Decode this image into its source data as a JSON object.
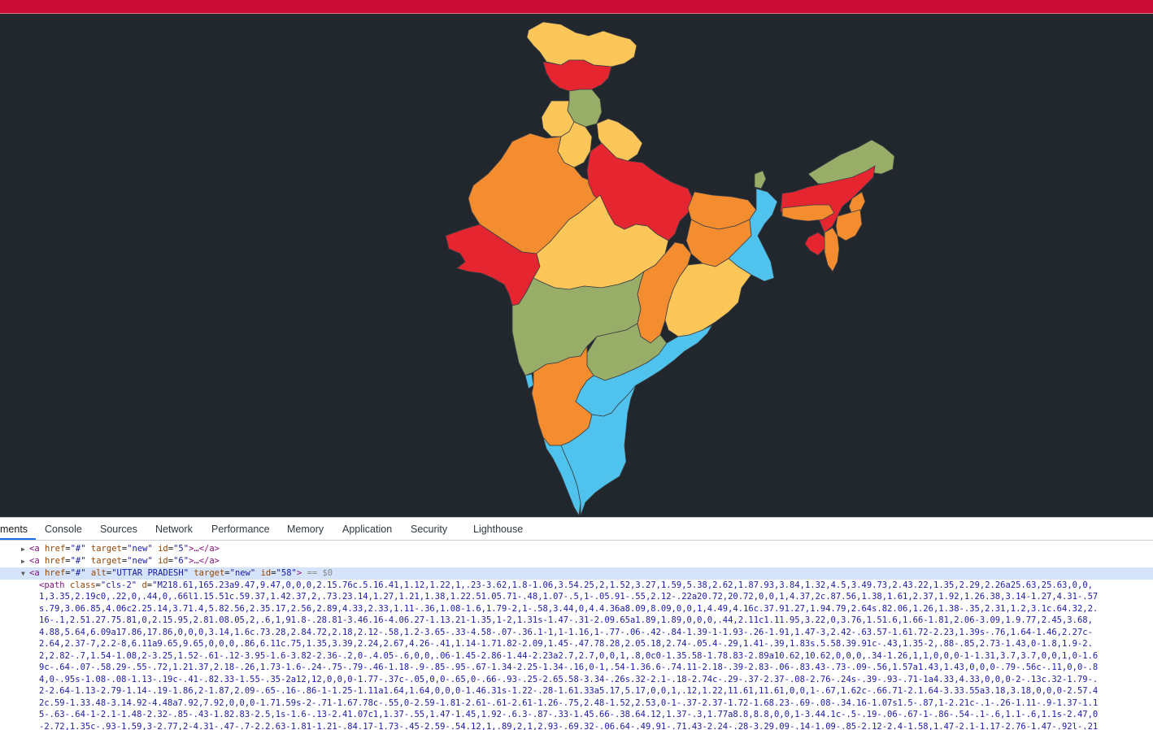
{
  "map": {
    "colors": {
      "red": "#e52530",
      "orange": "#f48c30",
      "yellow": "#fdc658",
      "green": "#98ad68",
      "blue": "#4fc3ee",
      "background": "#22262d"
    },
    "state_alt": "UTTAR PRADESH"
  },
  "devtools": {
    "tabs": [
      "ments",
      "Console",
      "Sources",
      "Network",
      "Performance",
      "Memory",
      "Application",
      "Security",
      "Lighthouse"
    ],
    "active_tab": "ments",
    "nodes": [
      {
        "tag_open": "<a",
        "href_attr": "href",
        "href_val": "\"#\"",
        "target_attr": "target",
        "target_val": "\"new\"",
        "id_attr": "id",
        "id_val": "\"5\"",
        "tail": ">…</a>"
      },
      {
        "tag_open": "<a",
        "href_attr": "href",
        "href_val": "\"#\"",
        "target_attr": "target",
        "target_val": "\"new\"",
        "id_attr": "id",
        "id_val": "\"6\"",
        "tail": ">…</a>"
      },
      {
        "tag_open": "<a",
        "href_attr": "href",
        "href_val": "\"#\"",
        "alt_attr": "alt",
        "alt_val": "\"UTTAR PRADESH\"",
        "target_attr": "target",
        "target_val": "\"new\"",
        "id_attr": "id",
        "id_val": "\"58\"",
        "tail": ">",
        "marker": "== $0"
      }
    ],
    "path_tag": "<path",
    "path_class_attr": "class",
    "path_class_val": "\"cls-2\"",
    "path_d_attr": "d",
    "path_lines": [
      "\"M218.61,165.23a9.47,9.47,0,0,0,2.15.76c.5.16.41,1.12,1.22,1,.23-3.62,1.8-1.06,3.54.25,2,1.52,3.27,1.59,5.38,2.62,1.87.93,3.84,1.32,4.5,3.49.73,2.43.22,1.35,2.29,2.26a25.63,25.63,0,0,",
      "1,3.35,2.19c0,.22,0,.44,0,.66l1.15.51c.59.37,1.42.37,2,.73.23.14,1.27,1.21,1.38,1.22.51.05.71-.48,1.07-.5,1-.05.91-.55,2.12-.22a20.72,20.72,0,0,1,4.37,2c.87.56,1.38,1.61,2.37,1.92,1.26.38,3.14-1.27,4.31-.57",
      "s.79,3.06.85,4.06c2.25.14,3.71.4,5.82.56,2.35.17,2.56,2.89,4.33,2.33,1.11-.36,1.08-1.6,1.79-2,1-.58,3.44,0,4.4.36a8.09,8.09,0,0,1,4.49,4.16c.37.91.27,1.94.79,2.64s.82.06,1.26,1.38-.35,2.31,1.2,3.1c.64.32,2.",
      "16-.1,2.51.27.75.81,0,2.15.95,2.81.08.05,2,.6,1,91.8-.28.81-3.46.16-4.06.27-1.13.21-1.35,1-2,1.31s-1.47-.31-2.09.65a1.89,1.89,0,0,0,.44,2.11c1.11.95,3.22,0,3.76,1.51.6,1.66-1.81,2.06-3.09,1.9.77,2.45,3.68,",
      "4.88,5.64,6.09a17.86,17.86,0,0,0,3.14,1.6c.73.28,2.84.72,2.18,2.12-.58,1.2-3.65-.33-4.58-.07-.36.1-1,1-1.16,1-.77-.06-.42-.84-1.39-1-1.93-.26-1.91,1.47-3,2.42-.63.57-1.61.72-2.23,1.39s-.76,1.64-1.46,2.27c-",
      "2.64,2.37-7,2.2-8,6.11a9.65,9.65,0,0,0,.86,6.11c.75,1.35,3.39,2.24,2.67,4.26-.41,1.14-1.71.82-2.09,1.45-.47.78.28,2.05.18,2.74-.05.4-.29,1.41-.39,1.83s.5.58.39.91c-.43,1.35-2,.88-.85,2.73-1.43,0-1.8,1.9-2.",
      "2,2.82-.7,1.54-1.08,2-3.25,1.52-.61-.12-3.95-1.6-3.82-2.36-.2,0-.4.05-.6,0,0,.06-1.45-2.86-1.44-2.23a2.7,2.7,0,0,1,.8,0c0-1.35.58-1.78.83-2.89a10.62,10.62,0,0,0,.34-1.26,1,1,0,0,0-1-1.31,3.7,3.7,0,0,1,0-1.6",
      "9c-.64-.07-.58.29-.55-.72,1.21.37,2.18-.26,1.73-1.6-.24-.75-.79-.46-1.18-.9-.85-.95-.67-1.34-2.25-1.34-.16,0-1,.54-1.36.6-.74.11-2.18-.39-2.83-.06-.83.43-.73-.09-.56,1.57a1.43,1.43,0,0,0-.79-.56c-.11,0,0-.8",
      "4,0-.95s-1.08-.08-1.13-.19c-.41-.82.33-1.55-.35-2a12,12,0,0,0-1.77-.37c-.05,0,0-.65,0-.66-.93-.25-2.65.58-3.34-.26s.32-2.1-.18-2.74c-.29-.37-2.37-.08-2.76-.24s-.39-.93-.71-1a4.33,4.33,0,0,0-2-.13c.32-1.79-.",
      "2-2.64-1.13-2.79-1.14-.19-1.86,2-1.87,2.09-.65-.16-.86-1-1.25-1.11a1.64,1.64,0,0,0-1.46.31s-1.22-.28-1.61.33a5.17,5.17,0,0,1,.12,1.22,11.61,11.61,0,0,1-.67,1.62c-.66.71-2.1.64-3.33.55a3.18,3.18,0,0,0-2.57.4",
      "2c.59-1.33.48-3.14.92-4.48a7.92,7.92,0,0,0-1.71.59s-2-.71-1.67.78c-.55,0-2.59-1.81-2.61-.61-2.61-1.26-.75,2.48-1.52,2.53,0-1-.37-2.37-1.72-1.68.23-.69-.08-.34.16-1.07s1.5-.87,1-2.21c-.1-.26-1.11-.9-1.37-1.1",
      "5-.63-.64-1-2.1-1.48-2.32-.85-.43-1.82.83-2.5,1s-1.6-.13-2.41.07c1,1.37-.55,1.47-1.45,1.92-.6.3-.87-.33-1.45.66-.38.64.12,1.37-.3,1.77a8.8,8.8,0,0,1-3.44.1c-.5-.19-.06-.67-1-.86-.54-.1-.6,1.1-.6,1.1s-2.47,0",
      "-2.72,1.35c-.93-1.59,3-2.77,2-4.31-.47-.7-2.2.63-1.81-1.21-.84.17-1.73-.45-2.59-.54.12,1,.89,2,1,2.93-.69.32-.06.64-.49.91-.71.43-2.24-.28-3.29.09-.14-1.09-.85-2.12-2.4-1.58,1.47-2.1-1.17-2.76-1.47-.92l-.21"
    ]
  }
}
